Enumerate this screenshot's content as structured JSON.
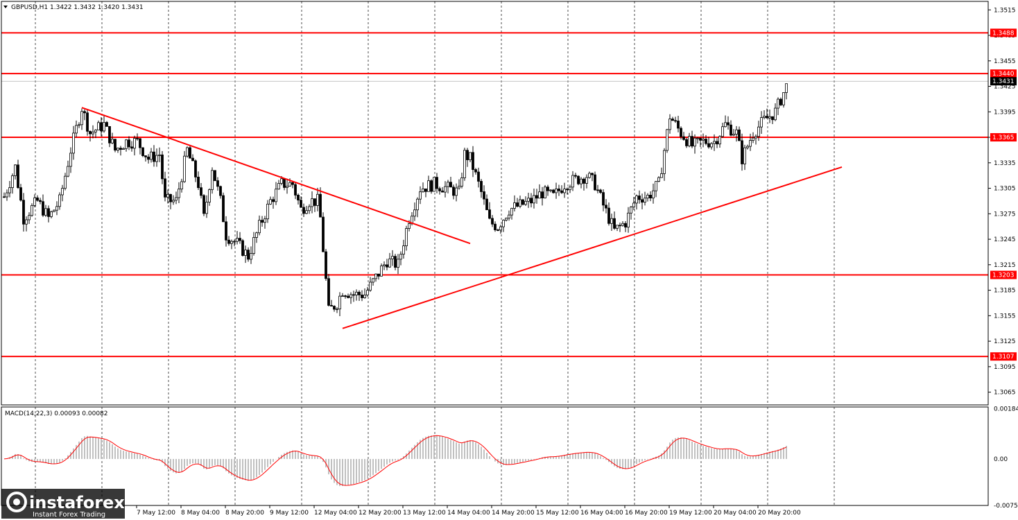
{
  "window": {
    "symbol_header": "GBPUSD,H1 1.3422 1.3432 1.3420 1.3431",
    "macd_label": "MACD(14,22,3) 0.00093 0.00082"
  },
  "branding": {
    "logo": "instaforex",
    "tagline": "Instant Forex Trading",
    "logo_color": "#ffffff"
  },
  "chart_data": {
    "type": "candlestick",
    "symbol": "GBPUSD",
    "timeframe": "H1",
    "ylim": [
      1.305,
      1.3525
    ],
    "price_ticks": [
      "1.3515",
      "1.3485",
      "1.3455",
      "1.3425",
      "1.3395",
      "1.3365",
      "1.3335",
      "1.3305",
      "1.3275",
      "1.3245",
      "1.3215",
      "1.3185",
      "1.3155",
      "1.3125",
      "1.3095",
      "1.3065"
    ],
    "current_price": "1.3431",
    "levels": [
      {
        "label": "1.3488",
        "value": 1.3488,
        "color": "#ff0000"
      },
      {
        "label": "1.3440",
        "value": 1.344,
        "color": "#ff0000"
      },
      {
        "label": "1.3365",
        "value": 1.3365,
        "color": "#ff0000"
      },
      {
        "label": "1.3203",
        "value": 1.3203,
        "color": "#ff0000"
      },
      {
        "label": "1.3107",
        "value": 1.3107,
        "color": "#ff0000"
      }
    ],
    "time_labels": [
      "7 May 12:00",
      "8 May 04:00",
      "8 May 20:00",
      "9 May 12:00",
      "12 May 04:00",
      "12 May 20:00",
      "13 May 12:00",
      "14 May 04:00",
      "14 May 20:00",
      "15 May 12:00",
      "16 May 04:00",
      "16 May 20:00",
      "19 May 12:00",
      "20 May 04:00",
      "20 May 20:00"
    ],
    "time_label_bars": [
      48,
      64,
      80,
      96,
      112,
      128,
      144,
      160,
      176,
      192,
      208,
      224,
      240,
      256,
      272
    ],
    "gridline_bars": [
      0,
      24,
      48,
      72,
      96,
      120,
      144,
      168,
      192,
      216,
      240,
      264,
      288
    ],
    "bar_count": 300,
    "anchors": [
      [
        0,
        1.3295
      ],
      [
        4,
        1.333
      ],
      [
        7,
        1.327
      ],
      [
        12,
        1.329
      ],
      [
        16,
        1.327
      ],
      [
        20,
        1.329
      ],
      [
        24,
        1.335
      ],
      [
        28,
        1.34
      ],
      [
        31,
        1.337
      ],
      [
        36,
        1.338
      ],
      [
        40,
        1.335
      ],
      [
        44,
        1.336
      ],
      [
        48,
        1.336
      ],
      [
        52,
        1.334
      ],
      [
        56,
        1.3345
      ],
      [
        58,
        1.329
      ],
      [
        62,
        1.329
      ],
      [
        66,
        1.335
      ],
      [
        70,
        1.331
      ],
      [
        72,
        1.327
      ],
      [
        75,
        1.333
      ],
      [
        78,
        1.329
      ],
      [
        80,
        1.325
      ],
      [
        84,
        1.324
      ],
      [
        88,
        1.3225
      ],
      [
        92,
        1.326
      ],
      [
        96,
        1.329
      ],
      [
        100,
        1.331
      ],
      [
        104,
        1.331
      ],
      [
        107,
        1.328
      ],
      [
        110,
        1.329
      ],
      [
        113,
        1.329
      ],
      [
        114,
        1.327
      ],
      [
        117,
        1.316
      ],
      [
        120,
        1.317
      ],
      [
        122,
        1.3185
      ],
      [
        126,
        1.318
      ],
      [
        130,
        1.318
      ],
      [
        134,
        1.32
      ],
      [
        138,
        1.322
      ],
      [
        142,
        1.3215
      ],
      [
        146,
        1.327
      ],
      [
        150,
        1.3305
      ],
      [
        155,
        1.331
      ],
      [
        160,
        1.3305
      ],
      [
        164,
        1.33
      ],
      [
        166,
        1.3345
      ],
      [
        168,
        1.334
      ],
      [
        172,
        1.33
      ],
      [
        175,
        1.3265
      ],
      [
        178,
        1.326
      ],
      [
        182,
        1.328
      ],
      [
        186,
        1.3285
      ],
      [
        190,
        1.329
      ],
      [
        194,
        1.33
      ],
      [
        198,
        1.3295
      ],
      [
        202,
        1.331
      ],
      [
        206,
        1.3315
      ],
      [
        210,
        1.332
      ],
      [
        213,
        1.331
      ],
      [
        216,
        1.3285
      ],
      [
        220,
        1.3255
      ],
      [
        224,
        1.3265
      ],
      [
        228,
        1.3295
      ],
      [
        232,
        1.3295
      ],
      [
        236,
        1.331
      ],
      [
        240,
        1.339
      ],
      [
        244,
        1.337
      ],
      [
        248,
        1.3355
      ],
      [
        252,
        1.336
      ],
      [
        256,
        1.336
      ],
      [
        260,
        1.338
      ],
      [
        264,
        1.337
      ],
      [
        266,
        1.334
      ],
      [
        270,
        1.337
      ],
      [
        274,
        1.3385
      ],
      [
        278,
        1.3395
      ],
      [
        282,
        1.3425
      ]
    ],
    "trendlines": [
      {
        "name": "resistance",
        "from": [
          28,
          1.34
        ],
        "to": [
          168,
          1.324
        ],
        "color": "#ff0000"
      },
      {
        "name": "support",
        "from": [
          122,
          1.314
        ],
        "to": [
          302,
          1.333
        ],
        "color": "#ff0000"
      }
    ],
    "macd": {
      "ticks": [
        "0.00184",
        "0.00",
        "-0.0075"
      ],
      "ylim": [
        -0.0017,
        0.0019
      ],
      "signal_color": "#ff0000",
      "hist_color": "#c0c0c0"
    }
  }
}
